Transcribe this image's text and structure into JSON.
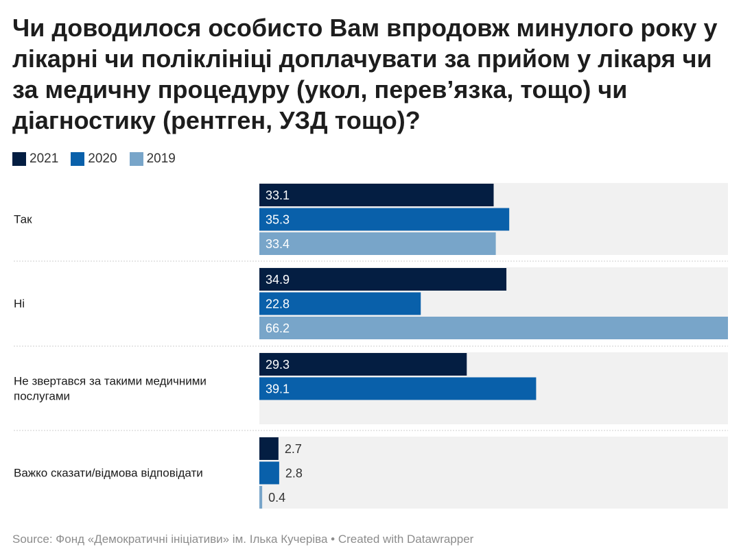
{
  "chart_data": {
    "type": "bar",
    "orientation": "horizontal",
    "title": "Чи доводилося особисто Вам впродовж минулого року у лікарні чи поліклініці доплачувати за прийом у лікаря чи за медичну процедуру (укол, перев’язка, тощо) чи діагностику (рентген, УЗД тощо)?",
    "categories": [
      "Так",
      "Ні",
      "Не звертався за такими медичними послугами",
      "Важко сказати/відмова відповідати"
    ],
    "series": [
      {
        "name": "2021",
        "color": "#041e42",
        "values": [
          33.1,
          34.9,
          29.3,
          2.7
        ],
        "labels": [
          "33.1",
          "34.9",
          "29.3",
          "2.7"
        ]
      },
      {
        "name": "2020",
        "color": "#0960aa",
        "values": [
          35.3,
          22.8,
          39.1,
          2.8
        ],
        "labels": [
          "35.3",
          "22.8",
          "39.1",
          "2.8"
        ]
      },
      {
        "name": "2019",
        "color": "#78a5c9",
        "values": [
          33.4,
          66.2,
          null,
          0.4
        ],
        "labels": [
          "33.4",
          "66.2",
          "",
          "0.4"
        ]
      }
    ],
    "xlim": [
      0,
      66.2
    ],
    "legend": "top-left",
    "grid": false
  },
  "footer": {
    "source_text": "Source: Фонд «Демократичні ініціативи» ім. Ілька Кучеріва • Created with Datawrapper"
  },
  "colors": {
    "track": "#f1f1f1",
    "divider": "#cccccc",
    "label_inside": "#ffffff",
    "label_outside": "#333333"
  }
}
